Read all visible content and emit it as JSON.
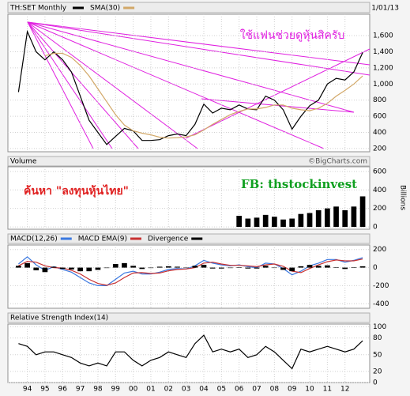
{
  "chart_data": [
    {
      "type": "line",
      "title": "TH:SET Monthly",
      "date": "1/01/13",
      "annotations": [
        "ใช้แฟนช่วยดูหุ้นสิครับ"
      ],
      "x": [
        1993.5,
        1994.0,
        1994.5,
        1995.0,
        1995.5,
        1996.0,
        1996.5,
        1997.0,
        1997.5,
        1998.0,
        1998.5,
        1999.0,
        1999.5,
        2000.0,
        2000.5,
        2001.0,
        2001.5,
        2002.0,
        2002.5,
        2003.0,
        2003.5,
        2004.0,
        2004.5,
        2005.0,
        2005.5,
        2006.0,
        2006.5,
        2007.0,
        2007.5,
        2008.0,
        2008.5,
        2009.0,
        2009.5,
        2010.0,
        2010.5,
        2011.0,
        2011.5,
        2012.0,
        2012.5,
        2013.0
      ],
      "series": [
        {
          "name": "TH:SET Monthly",
          "color": "#000000",
          "values": [
            900,
            1650,
            1400,
            1300,
            1400,
            1300,
            1150,
            850,
            550,
            400,
            250,
            350,
            450,
            420,
            300,
            300,
            310,
            360,
            380,
            360,
            500,
            750,
            640,
            700,
            680,
            740,
            690,
            680,
            850,
            800,
            680,
            440,
            600,
            730,
            800,
            1000,
            1070,
            1050,
            1150,
            1390
          ]
        },
        {
          "name": "SMA(30)",
          "color": "#d2a868",
          "values": [
            null,
            null,
            null,
            1350,
            1380,
            1380,
            1330,
            1230,
            1100,
            940,
            780,
            620,
            490,
            420,
            390,
            370,
            340,
            330,
            335,
            345,
            370,
            430,
            500,
            560,
            620,
            660,
            690,
            690,
            710,
            740,
            740,
            700,
            680,
            670,
            700,
            760,
            850,
            920,
            1000,
            1100
          ]
        }
      ],
      "ylim": [
        160,
        1865
      ],
      "yticks": [
        200,
        400,
        600,
        800,
        {
          "value": 1000,
          "label": "1,000"
        },
        {
          "value": 1200,
          "label": "1,200"
        },
        {
          "value": 1400,
          "label": "1,400"
        },
        {
          "value": 1600,
          "label": "1,600"
        }
      ],
      "grid": true
    },
    {
      "type": "bar",
      "title": "Volume",
      "source": "©BigCharts.com",
      "axis_label": "Billions",
      "annotations": [
        "ค้นหา \"ลงทุนหุ้นไทย\"",
        "FB: thstockinvest"
      ],
      "series": [
        {
          "name": "Volume",
          "color": "#000000",
          "values": [
            null,
            null,
            null,
            null,
            null,
            null,
            null,
            null,
            null,
            null,
            null,
            null,
            null,
            null,
            null,
            null,
            null,
            null,
            null,
            null,
            null,
            null,
            null,
            null,
            null,
            120,
            90,
            100,
            130,
            110,
            80,
            90,
            140,
            150,
            180,
            200,
            220,
            180,
            220,
            330
          ]
        }
      ],
      "ylim": [
        -25,
        650
      ],
      "yticks": [
        0,
        200,
        400,
        600
      ],
      "grid": true
    },
    {
      "type": "line",
      "series": [
        {
          "name": "MACD(12,26)",
          "color": "#3a78e0",
          "values": [
            40,
            120,
            30,
            -30,
            10,
            -20,
            -50,
            -110,
            -170,
            -200,
            -200,
            -130,
            -60,
            -40,
            -70,
            -70,
            -50,
            -20,
            -10,
            -15,
            20,
            80,
            50,
            30,
            20,
            30,
            10,
            0,
            50,
            40,
            -10,
            -80,
            -40,
            20,
            50,
            90,
            90,
            60,
            80,
            110
          ]
        },
        {
          "name": "MACD EMA(9)",
          "color": "#c83030",
          "values": [
            20,
            70,
            60,
            20,
            0,
            -5,
            -30,
            -70,
            -130,
            -175,
            -195,
            -170,
            -110,
            -60,
            -55,
            -65,
            -60,
            -35,
            -20,
            -15,
            0,
            50,
            60,
            40,
            25,
            25,
            20,
            10,
            30,
            40,
            15,
            -40,
            -55,
            -10,
            30,
            65,
            85,
            75,
            75,
            95
          ]
        },
        {
          "name": "Divergence",
          "color": "#000000",
          "type": "bar",
          "values": [
            20,
            50,
            -30,
            -50,
            10,
            -15,
            -20,
            -40,
            -40,
            -25,
            -5,
            40,
            50,
            20,
            -15,
            -5,
            10,
            15,
            10,
            0,
            20,
            30,
            -10,
            -10,
            -5,
            5,
            -10,
            -10,
            20,
            0,
            -25,
            -40,
            15,
            30,
            20,
            25,
            5,
            -15,
            5,
            15
          ]
        }
      ],
      "ylim": [
        -450,
        250
      ],
      "yticks": [
        -400,
        -200,
        0,
        200
      ],
      "grid": true
    },
    {
      "type": "line",
      "title": "Relative Strength Index(14)",
      "series": [
        {
          "name": "Relative Strength Index(14)",
          "color": "#000000",
          "values": [
            70,
            65,
            50,
            55,
            55,
            50,
            45,
            35,
            30,
            35,
            30,
            55,
            55,
            40,
            30,
            40,
            45,
            55,
            50,
            45,
            70,
            85,
            55,
            60,
            55,
            60,
            45,
            50,
            65,
            55,
            40,
            25,
            60,
            55,
            60,
            65,
            60,
            55,
            60,
            75
          ]
        }
      ],
      "ylim": [
        0,
        105
      ],
      "yticks": [
        0,
        20,
        50,
        80,
        100
      ],
      "grid": true,
      "xlim": [
        1992.9,
        2013.4
      ],
      "xticks": [
        {
          "value": 1994,
          "label": "94"
        },
        {
          "value": 1995,
          "label": "95"
        },
        {
          "value": 1996,
          "label": "96"
        },
        {
          "value": 1997,
          "label": "97"
        },
        {
          "value": 1998,
          "label": "98"
        },
        {
          "value": 1999,
          "label": "99"
        },
        {
          "value": 2000,
          "label": "00"
        },
        {
          "value": 2001,
          "label": "01"
        },
        {
          "value": 2002,
          "label": "02"
        },
        {
          "value": 2003,
          "label": "03"
        },
        {
          "value": 2004,
          "label": "04"
        },
        {
          "value": 2005,
          "label": "05"
        },
        {
          "value": 2006,
          "label": "06"
        },
        {
          "value": 2007,
          "label": "07"
        },
        {
          "value": 2008,
          "label": "08"
        },
        {
          "value": 2009,
          "label": "09"
        },
        {
          "value": 2010,
          "label": "10"
        },
        {
          "value": 2011,
          "label": "11"
        },
        {
          "value": 2012,
          "label": "12"
        }
      ]
    }
  ]
}
